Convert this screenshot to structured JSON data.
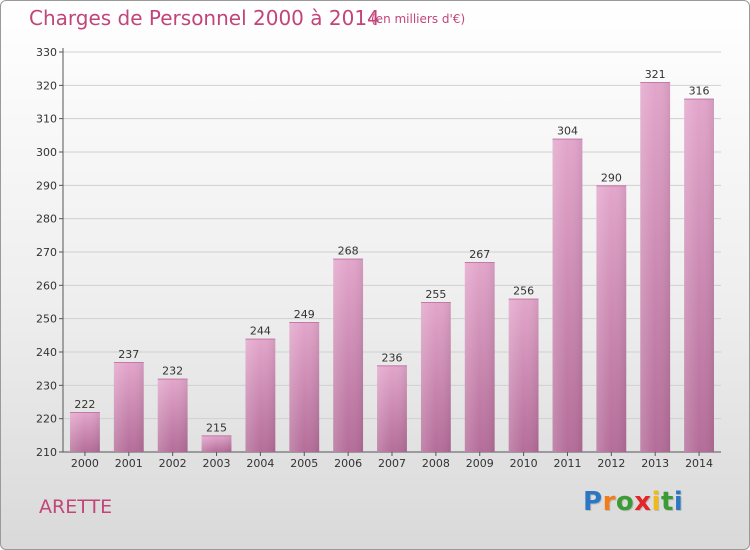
{
  "page": {
    "title": "Charges de Personnel 2000 à 2014",
    "subtitle": "(en milliers d'€)",
    "commune": "ARETTE",
    "logo": [
      "P",
      "r",
      "o",
      "x",
      "i",
      "t",
      "i"
    ],
    "logo_colors": [
      "#2b77c4",
      "#f07d1a",
      "#3d9b35",
      "#e2262a",
      "#f0b81a",
      "#3d9b35",
      "#2b77c4"
    ]
  },
  "chart_data": {
    "type": "bar",
    "title": "Charges de Personnel 2000 à 2014",
    "subtitle": "(en milliers d'€)",
    "categories": [
      "2000",
      "2001",
      "2002",
      "2003",
      "2004",
      "2005",
      "2006",
      "2007",
      "2008",
      "2009",
      "2010",
      "2011",
      "2012",
      "2013",
      "2014"
    ],
    "values": [
      222,
      237,
      232,
      215,
      244,
      249,
      268,
      236,
      255,
      267,
      256,
      304,
      290,
      321,
      316
    ],
    "ylim": [
      210,
      330
    ],
    "yticks": [
      210,
      220,
      230,
      240,
      250,
      260,
      270,
      280,
      290,
      300,
      310,
      320,
      330
    ],
    "grid": true,
    "bar_color_top": "#e3a6cb",
    "bar_color_bottom": "#b46d99"
  }
}
